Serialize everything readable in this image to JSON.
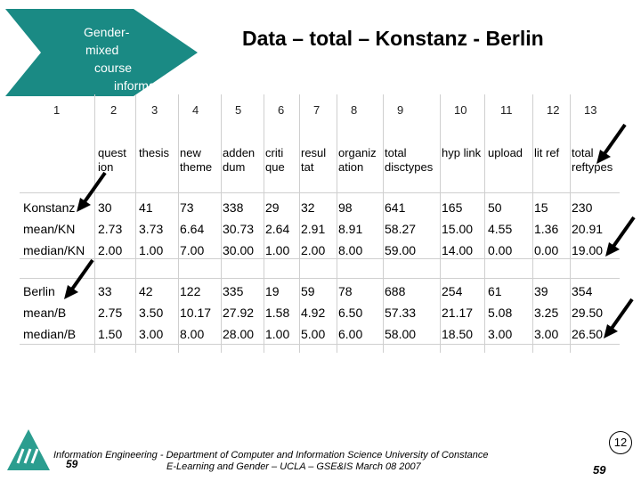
{
  "banner": {
    "lines": [
      "Gender-",
      "mixed",
      "course",
      "informat"
    ]
  },
  "title": "Data – total – Konstanz - Berlin",
  "columns": [
    {
      "num": "1",
      "label": [
        "",
        ""
      ]
    },
    {
      "num": "2",
      "label": [
        "quest",
        "ion"
      ]
    },
    {
      "num": "3",
      "label": [
        "thesis",
        ""
      ]
    },
    {
      "num": "4",
      "label": [
        "new",
        "theme"
      ]
    },
    {
      "num": "5",
      "label": [
        "adden",
        "dum"
      ]
    },
    {
      "num": "6",
      "label": [
        "criti",
        "que"
      ]
    },
    {
      "num": "7",
      "label": [
        "resul",
        "tat"
      ]
    },
    {
      "num": "8",
      "label": [
        "organiz",
        "ation"
      ]
    },
    {
      "num": "9",
      "label": [
        "total",
        "disctypes"
      ]
    },
    {
      "num": "10",
      "label": [
        "hyp link",
        ""
      ]
    },
    {
      "num": "11",
      "label": [
        "upload",
        ""
      ]
    },
    {
      "num": "12",
      "label": [
        "lit ref",
        ""
      ]
    },
    {
      "num": "13",
      "label": [
        "total",
        "reftypes"
      ]
    }
  ],
  "rows": [
    {
      "label": "Konstanz",
      "values": [
        "30",
        "41",
        "73",
        "338",
        "29",
        "32",
        "98",
        "641",
        "165",
        "50",
        "15",
        "230"
      ]
    },
    {
      "label": "mean/KN",
      "values": [
        "2.73",
        "3.73",
        "6.64",
        "30.73",
        "2.64",
        "2.91",
        "8.91",
        "58.27",
        "15.00",
        "4.55",
        "1.36",
        "20.91"
      ]
    },
    {
      "label": "median/KN",
      "values": [
        "2.00",
        "1.00",
        "7.00",
        "30.00",
        "1.00",
        "2.00",
        "8.00",
        "59.00",
        "14.00",
        "0.00",
        "0.00",
        "19.00"
      ]
    },
    {
      "label": "Berlin",
      "values": [
        "33",
        "42",
        "122",
        "335",
        "19",
        "59",
        "78",
        "688",
        "254",
        "61",
        "39",
        "354"
      ]
    },
    {
      "label": "mean/B",
      "values": [
        "2.75",
        "3.50",
        "10.17",
        "27.92",
        "1.58",
        "4.92",
        "6.50",
        "57.33",
        "21.17",
        "5.08",
        "3.25",
        "29.50"
      ]
    },
    {
      "label": "median/B",
      "values": [
        "1.50",
        "3.00",
        "8.00",
        "28.00",
        "1.00",
        "5.00",
        "6.00",
        "58.00",
        "18.50",
        "3.00",
        "3.00",
        "26.50"
      ]
    }
  ],
  "footer": {
    "line1": "Information Engineering - Department of Computer and Information Science University of Constance",
    "line2": "E-Learning and Gender – UCLA – GSE&IS March 08 2007",
    "page_left": "59",
    "page_right": "59",
    "badge": "12"
  },
  "colors": {
    "banner": "#1a8a84",
    "logo": "#2b9d8f",
    "grid": "#cfcfcf"
  },
  "icons": {
    "arrow": "black-arrow-icon",
    "logo": "university-logo-icon"
  }
}
